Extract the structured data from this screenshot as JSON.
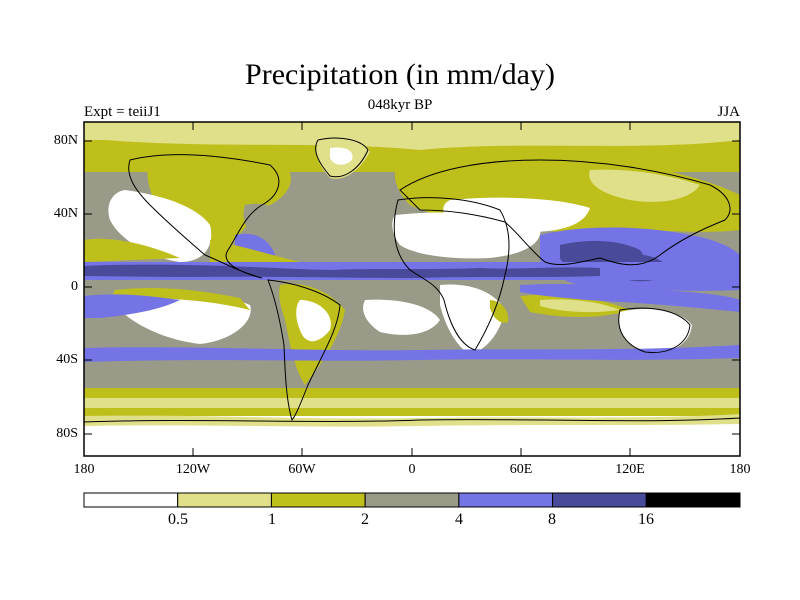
{
  "title": "Precipitation (in mm/day)",
  "left_label": "Expt = teiiJ1",
  "center_label": "048kyr BP",
  "right_label": "JJA",
  "lat_ticks": [
    "80N",
    "40N",
    "0",
    "40S",
    "80S"
  ],
  "lon_ticks": [
    "180",
    "120W",
    "60W",
    "0",
    "60E",
    "120E",
    "180"
  ],
  "colorbar": {
    "levels": [
      "0.5",
      "1",
      "2",
      "4",
      "8",
      "16"
    ],
    "colors": [
      "#ffffff",
      "#e1e08a",
      "#bfbf1c",
      "#9a9a88",
      "#7474e6",
      "#4a4a9a",
      "#000000"
    ]
  }
}
